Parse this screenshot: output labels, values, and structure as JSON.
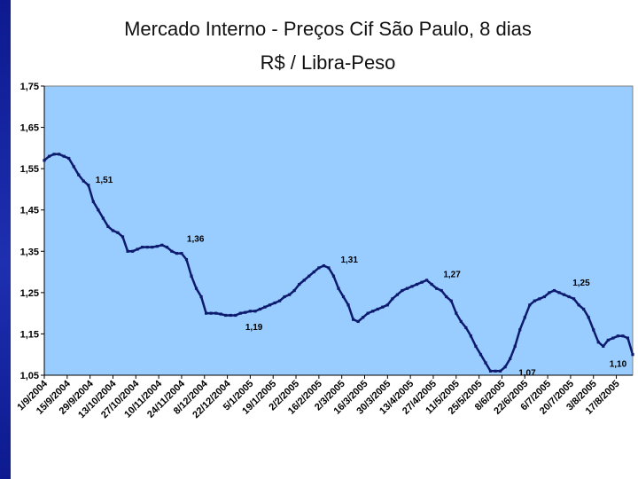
{
  "slide": {
    "accent_color": "#1a2aa0",
    "plot_background": "#99ccff",
    "series_color": "#0d1a6e"
  },
  "chart_data": {
    "type": "line",
    "title": "Mercado Interno - Preços Cif São Paulo, 8 dias",
    "subtitle": "R$ / Libra-Peso",
    "xlabel": "",
    "ylabel": "",
    "ylim": [
      1.05,
      1.75
    ],
    "yticks": [
      "1,75",
      "1,65",
      "1,55",
      "1,45",
      "1,35",
      "1,25",
      "1,15",
      "1,05"
    ],
    "ytick_values": [
      1.75,
      1.65,
      1.55,
      1.45,
      1.35,
      1.25,
      1.15,
      1.05
    ],
    "grid": false,
    "legend": "none",
    "x_tick_labels": [
      "1/9/2004",
      "15/9/2004",
      "29/9/2004",
      "13/10/2004",
      "27/10/2004",
      "10/11/2004",
      "24/11/2004",
      "8/12/2004",
      "22/12/2004",
      "5/1/2005",
      "19/1/2005",
      "2/2/2005",
      "16/2/2005",
      "2/3/2005",
      "16/3/2005",
      "30/3/2005",
      "13/4/2005",
      "27/4/2005",
      "11/5/2005",
      "25/5/2005",
      "8/6/2005",
      "22/6/2005",
      "6/7/2005",
      "20/7/2005",
      "3/8/2005",
      "17/8/2005"
    ],
    "x_range": [
      "2004-09-01",
      "2005-08-27"
    ],
    "series": [
      {
        "x": [
          "2004-09-01",
          "2004-09-04",
          "2004-09-07",
          "2004-09-10",
          "2004-09-13",
          "2004-09-16",
          "2004-09-19",
          "2004-09-22",
          "2004-09-25",
          "2004-09-28",
          "2004-10-01",
          "2004-10-04",
          "2004-10-07",
          "2004-10-10",
          "2004-10-13",
          "2004-10-16",
          "2004-10-19",
          "2004-10-22",
          "2004-10-25",
          "2004-10-28",
          "2004-10-31",
          "2004-11-03",
          "2004-11-06",
          "2004-11-09",
          "2004-11-12",
          "2004-11-15",
          "2004-11-18",
          "2004-11-21",
          "2004-11-24",
          "2004-11-27",
          "2004-11-30",
          "2004-12-03",
          "2004-12-06",
          "2004-12-09",
          "2004-12-12",
          "2004-12-15",
          "2004-12-18",
          "2004-12-21",
          "2004-12-24",
          "2004-12-27",
          "2004-12-30",
          "2005-01-02",
          "2005-01-05",
          "2005-01-08",
          "2005-01-11",
          "2005-01-14",
          "2005-01-17",
          "2005-01-20",
          "2005-01-23",
          "2005-01-26",
          "2005-01-29",
          "2005-02-01",
          "2005-02-04",
          "2005-02-07",
          "2005-02-10",
          "2005-02-13",
          "2005-02-16",
          "2005-02-19",
          "2005-02-22",
          "2005-02-25",
          "2005-02-28",
          "2005-03-03",
          "2005-03-06",
          "2005-03-09",
          "2005-03-12",
          "2005-03-15",
          "2005-03-18",
          "2005-03-21",
          "2005-03-24",
          "2005-03-27",
          "2005-03-30",
          "2005-04-02",
          "2005-04-05",
          "2005-04-08",
          "2005-04-11",
          "2005-04-14",
          "2005-04-17",
          "2005-04-20",
          "2005-04-23",
          "2005-04-26",
          "2005-04-29",
          "2005-05-02",
          "2005-05-05",
          "2005-05-08",
          "2005-05-11",
          "2005-05-14",
          "2005-05-17",
          "2005-05-20",
          "2005-05-23",
          "2005-05-26",
          "2005-05-29",
          "2005-06-01",
          "2005-06-04",
          "2005-06-07",
          "2005-06-10",
          "2005-06-13",
          "2005-06-16",
          "2005-06-19",
          "2005-06-22",
          "2005-06-25",
          "2005-06-28",
          "2005-07-01",
          "2005-07-04",
          "2005-07-07",
          "2005-07-10",
          "2005-07-13",
          "2005-07-16",
          "2005-07-19",
          "2005-07-22",
          "2005-07-25",
          "2005-07-28",
          "2005-07-31",
          "2005-08-03",
          "2005-08-06",
          "2005-08-09",
          "2005-08-12",
          "2005-08-15",
          "2005-08-18",
          "2005-08-21",
          "2005-08-24",
          "2005-08-27"
        ],
        "values": [
          1.57,
          1.58,
          1.585,
          1.585,
          1.58,
          1.575,
          1.555,
          1.535,
          1.52,
          1.51,
          1.47,
          1.45,
          1.43,
          1.41,
          1.4,
          1.395,
          1.385,
          1.35,
          1.35,
          1.355,
          1.36,
          1.36,
          1.36,
          1.362,
          1.365,
          1.36,
          1.35,
          1.345,
          1.345,
          1.33,
          1.29,
          1.26,
          1.24,
          1.2,
          1.2,
          1.2,
          1.198,
          1.195,
          1.195,
          1.195,
          1.2,
          1.202,
          1.205,
          1.205,
          1.21,
          1.215,
          1.22,
          1.225,
          1.23,
          1.24,
          1.245,
          1.255,
          1.27,
          1.28,
          1.29,
          1.3,
          1.31,
          1.315,
          1.31,
          1.29,
          1.26,
          1.24,
          1.22,
          1.185,
          1.18,
          1.19,
          1.2,
          1.205,
          1.21,
          1.215,
          1.22,
          1.235,
          1.245,
          1.255,
          1.26,
          1.265,
          1.27,
          1.275,
          1.28,
          1.27,
          1.26,
          1.255,
          1.24,
          1.23,
          1.2,
          1.18,
          1.165,
          1.145,
          1.12,
          1.1,
          1.08,
          1.06,
          1.06,
          1.06,
          1.07,
          1.09,
          1.12,
          1.16,
          1.19,
          1.22,
          1.23,
          1.235,
          1.24,
          1.25,
          1.255,
          1.25,
          1.245,
          1.24,
          1.235,
          1.22,
          1.21,
          1.19,
          1.16,
          1.13,
          1.12,
          1.135,
          1.14,
          1.145,
          1.145,
          1.14,
          1.1
        ]
      }
    ],
    "annotations": [
      {
        "x": "2004-09-28",
        "y": 1.51,
        "text": "1,51"
      },
      {
        "x": "2004-11-24",
        "y": 1.36,
        "text": "1,36"
      },
      {
        "x": "2005-01-02",
        "y": 1.19,
        "text": "1,19"
      },
      {
        "x": "2005-02-25",
        "y": 1.31,
        "text": "1,31"
      },
      {
        "x": "2005-05-01",
        "y": 1.27,
        "text": "1,27"
      },
      {
        "x": "2005-06-16",
        "y": 1.07,
        "text": "1,07"
      },
      {
        "x": "2005-07-18",
        "y": 1.25,
        "text": "1,25"
      },
      {
        "x": "2005-08-16",
        "y": 1.1,
        "text": "1,10"
      }
    ]
  }
}
